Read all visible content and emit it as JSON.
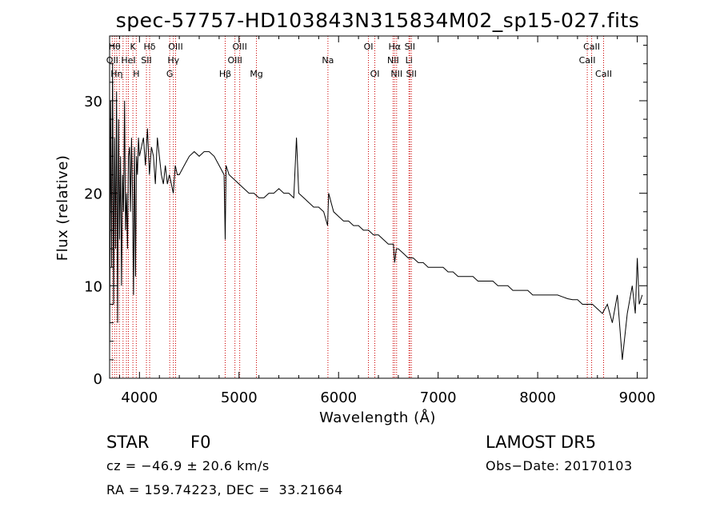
{
  "chart_data": {
    "type": "line",
    "title": "spec-57757-HD103843N315834M02_sp15-027.fits",
    "xlabel": "Wavelength (Å)",
    "ylabel": "Flux (relative)",
    "xlim": [
      3700,
      9100
    ],
    "ylim": [
      0,
      37
    ],
    "x_ticks": [
      {
        "value": 4000,
        "label": "4000"
      },
      {
        "value": 5000,
        "label": "5000"
      },
      {
        "value": 6000,
        "label": "6000"
      },
      {
        "value": 7000,
        "label": "7000"
      },
      {
        "value": 8000,
        "label": "8000"
      },
      {
        "value": 9000,
        "label": "9000"
      }
    ],
    "y_ticks": [
      {
        "value": 0,
        "label": "0"
      },
      {
        "value": 10,
        "label": "10"
      },
      {
        "value": 20,
        "label": "20"
      },
      {
        "value": 30,
        "label": "30"
      }
    ],
    "grid": false,
    "line_color": "#000000",
    "marker_color": "#cc0000",
    "series": [
      {
        "x": [
          3700,
          3710,
          3720,
          3730,
          3740,
          3750,
          3760,
          3770,
          3780,
          3790,
          3800,
          3810,
          3820,
          3830,
          3840,
          3850,
          3860,
          3870,
          3880,
          3890,
          3900,
          3910,
          3920,
          3930,
          3940,
          3950,
          3960,
          3970,
          3980,
          3990,
          4000,
          4020,
          4040,
          4060,
          4080,
          4100,
          4120,
          4140,
          4160,
          4180,
          4200,
          4220,
          4240,
          4260,
          4280,
          4300,
          4320,
          4340,
          4360,
          4380,
          4400,
          4450,
          4500,
          4550,
          4600,
          4650,
          4700,
          4750,
          4800,
          4850,
          4861,
          4870,
          4900,
          4950,
          5000,
          5050,
          5100,
          5150,
          5200,
          5250,
          5300,
          5350,
          5400,
          5450,
          5500,
          5550,
          5577,
          5600,
          5650,
          5700,
          5750,
          5800,
          5850,
          5890,
          5900,
          5950,
          6000,
          6050,
          6100,
          6150,
          6200,
          6250,
          6300,
          6350,
          6400,
          6450,
          6500,
          6550,
          6563,
          6580,
          6600,
          6650,
          6700,
          6750,
          6800,
          6850,
          6900,
          6950,
          7000,
          7050,
          7100,
          7150,
          7200,
          7250,
          7300,
          7350,
          7400,
          7450,
          7500,
          7550,
          7600,
          7650,
          7700,
          7750,
          7800,
          7850,
          7900,
          7950,
          8000,
          8050,
          8100,
          8150,
          8200,
          8250,
          8300,
          8350,
          8400,
          8450,
          8500,
          8550,
          8600,
          8650,
          8700,
          8750,
          8800,
          8850,
          8900,
          8950,
          8980,
          9000,
          9020,
          9050
        ],
        "y": [
          2,
          30,
          12,
          34,
          8,
          26,
          14,
          31,
          6,
          28,
          15,
          24,
          10,
          22,
          18,
          30,
          16,
          20,
          14,
          24,
          25,
          18,
          26,
          20,
          9,
          25,
          11,
          24,
          22,
          26,
          24,
          25,
          26,
          23,
          27,
          22,
          25,
          24,
          21,
          26,
          24,
          22,
          21,
          23,
          21,
          22,
          21,
          20,
          23,
          22,
          22,
          23,
          24,
          24.5,
          24,
          24.5,
          24.5,
          24,
          23,
          22,
          15,
          23,
          22,
          21.5,
          21,
          20.5,
          20,
          20,
          19.5,
          19.5,
          20,
          20,
          20.5,
          20,
          20,
          19.5,
          26,
          20,
          19.5,
          19,
          18.5,
          18.5,
          18,
          16.5,
          20,
          18,
          17.5,
          17,
          17,
          16.5,
          16.5,
          16,
          16,
          15.5,
          15.5,
          15,
          14.5,
          14.5,
          12.5,
          14,
          14,
          13.5,
          13,
          13,
          12.5,
          12.5,
          12,
          12,
          12,
          12,
          11.5,
          11.5,
          11,
          11,
          11,
          11,
          10.5,
          10.5,
          10.5,
          10.5,
          10,
          10,
          10,
          9.5,
          9.5,
          9.5,
          9.5,
          9,
          9,
          9,
          9,
          9,
          9,
          8.8,
          8.6,
          8.5,
          8.5,
          8,
          8,
          8,
          7.5,
          7,
          8,
          6,
          9,
          2,
          7,
          10,
          7,
          13,
          8,
          9
        ]
      }
    ],
    "lines": [
      {
        "x": 3727,
        "label": "OII",
        "row": 2
      },
      {
        "x": 3750,
        "label": "Hθ",
        "row": 1
      },
      {
        "x": 3771,
        "label": "Hη",
        "row": 3
      },
      {
        "x": 3798,
        "label": "",
        "row": 0
      },
      {
        "x": 3835,
        "label": "",
        "row": 0
      },
      {
        "x": 3869,
        "label": "",
        "row": 0
      },
      {
        "x": 3889,
        "label": "HeI",
        "row": 2
      },
      {
        "x": 3934,
        "label": "K",
        "row": 1
      },
      {
        "x": 3968,
        "label": "H",
        "row": 3
      },
      {
        "x": 4070,
        "label": "SII",
        "row": 2
      },
      {
        "x": 4102,
        "label": "Hδ",
        "row": 1
      },
      {
        "x": 4304,
        "label": "G",
        "row": 3
      },
      {
        "x": 4341,
        "label": "Hγ",
        "row": 2
      },
      {
        "x": 4363,
        "label": "OIII",
        "row": 1
      },
      {
        "x": 4861,
        "label": "Hβ",
        "row": 3
      },
      {
        "x": 4959,
        "label": "OIII",
        "row": 2
      },
      {
        "x": 5007,
        "label": "OIII",
        "row": 1
      },
      {
        "x": 5175,
        "label": "Mg",
        "row": 3
      },
      {
        "x": 5893,
        "label": "Na",
        "row": 2
      },
      {
        "x": 6300,
        "label": "OI",
        "row": 1
      },
      {
        "x": 6364,
        "label": "OI",
        "row": 3
      },
      {
        "x": 6548,
        "label": "NII",
        "row": 2
      },
      {
        "x": 6563,
        "label": "Hα",
        "row": 1
      },
      {
        "x": 6583,
        "label": "NII",
        "row": 3
      },
      {
        "x": 6707,
        "label": "Li",
        "row": 2
      },
      {
        "x": 6716,
        "label": "SII",
        "row": 1
      },
      {
        "x": 6731,
        "label": "SII",
        "row": 3
      },
      {
        "x": 8498,
        "label": "CaII",
        "row": 2
      },
      {
        "x": 8542,
        "label": "CaII",
        "row": 1
      },
      {
        "x": 8662,
        "label": "CaII",
        "row": 3
      }
    ]
  },
  "info": {
    "class_label": "STAR",
    "subclass": "F0",
    "survey": "LAMOST DR5",
    "cz": "cz = −46.9 ± 20.6 km/s",
    "obs_date": "Obs−Date: 20170103",
    "coords": "RA = 159.74223, DEC =  33.21664"
  }
}
